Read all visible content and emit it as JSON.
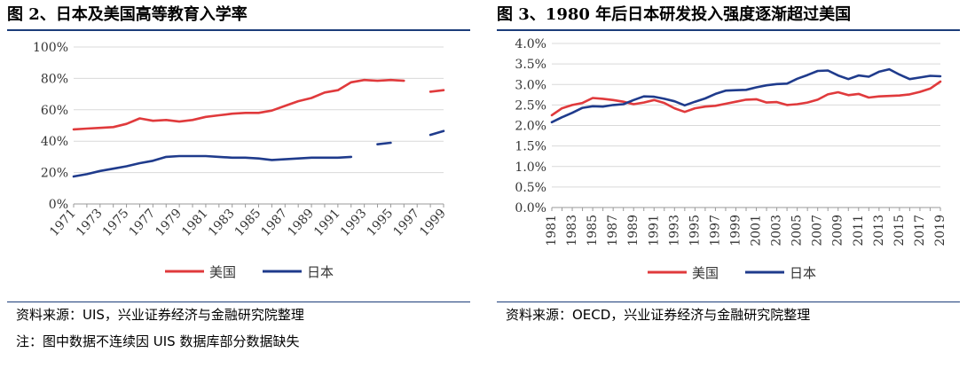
{
  "left": {
    "title": "图 2、日本及美国高等教育入学率",
    "source": "资料来源：UIS，兴业证券经济与金融研究院整理",
    "note": "注：图中数据不连续因 UIS 数据库部分数据缺失"
  },
  "right": {
    "title": "图 3、1980 年后日本研发投入强度逐渐超过美国",
    "source": "资料来源：OECD，兴业证券经济与金融研究院整理"
  },
  "chart_data": [
    {
      "type": "line",
      "title": "图 2、日本及美国高等教育入学率",
      "x": [
        1971,
        1972,
        1973,
        1974,
        1975,
        1976,
        1977,
        1978,
        1979,
        1980,
        1981,
        1982,
        1983,
        1984,
        1985,
        1986,
        1987,
        1988,
        1989,
        1990,
        1991,
        1992,
        1993,
        1994,
        1995,
        1996,
        1997,
        1998,
        1999
      ],
      "x_ticks": [
        "1971",
        "1973",
        "1975",
        "1977",
        "1979",
        "1981",
        "1983",
        "1985",
        "1987",
        "1989",
        "1991",
        "1993",
        "1995",
        "1997",
        "1999"
      ],
      "ylim": [
        0,
        100
      ],
      "y_ticks": [
        "0%",
        "20%",
        "40%",
        "60%",
        "80%",
        "100%"
      ],
      "grid": true,
      "legend": "bottom-center",
      "series": [
        {
          "name": "美国",
          "color": "#e03a3c",
          "values": [
            47.5,
            48,
            48.5,
            49,
            51,
            54.5,
            53,
            53.5,
            52.5,
            53.5,
            55.5,
            56.5,
            57.5,
            58,
            58,
            59.5,
            62.5,
            65.5,
            67.5,
            71,
            72.5,
            77.5,
            79,
            78.5,
            79,
            78.5,
            null,
            71.5,
            72.5
          ]
        },
        {
          "name": "日本",
          "color": "#1f3b8c",
          "values": [
            17.5,
            19,
            21,
            22.5,
            24,
            26,
            27.5,
            30,
            30.5,
            30.5,
            30.5,
            30,
            29.5,
            29.5,
            29,
            28,
            28.5,
            29,
            29.5,
            29.5,
            29.5,
            30,
            null,
            38,
            39,
            null,
            null,
            44,
            46.5
          ]
        }
      ]
    },
    {
      "type": "line",
      "title": "图 3、1980 年后日本研发投入强度逐渐超过美国",
      "x": [
        1981,
        1982,
        1983,
        1984,
        1985,
        1986,
        1987,
        1988,
        1989,
        1990,
        1991,
        1992,
        1993,
        1994,
        1995,
        1996,
        1997,
        1998,
        1999,
        2000,
        2001,
        2002,
        2003,
        2004,
        2005,
        2006,
        2007,
        2008,
        2009,
        2010,
        2011,
        2012,
        2013,
        2014,
        2015,
        2016,
        2017,
        2018,
        2019
      ],
      "x_ticks": [
        "1981",
        "1983",
        "1985",
        "1987",
        "1989",
        "1991",
        "1993",
        "1995",
        "1997",
        "1999",
        "2001",
        "2003",
        "2005",
        "2007",
        "2009",
        "2011",
        "2013",
        "2015",
        "2017",
        "2019"
      ],
      "ylim": [
        0,
        4
      ],
      "y_ticks": [
        "0.0%",
        "0.5%",
        "1.0%",
        "1.5%",
        "2.0%",
        "2.5%",
        "3.0%",
        "3.5%",
        "4.0%"
      ],
      "grid": true,
      "legend": "bottom-center",
      "series": [
        {
          "name": "美国",
          "color": "#e03a3c",
          "values": [
            2.25,
            2.42,
            2.5,
            2.55,
            2.67,
            2.65,
            2.62,
            2.58,
            2.52,
            2.56,
            2.62,
            2.55,
            2.42,
            2.33,
            2.42,
            2.46,
            2.48,
            2.53,
            2.58,
            2.63,
            2.64,
            2.56,
            2.57,
            2.5,
            2.52,
            2.56,
            2.63,
            2.76,
            2.81,
            2.74,
            2.77,
            2.68,
            2.71,
            2.72,
            2.73,
            2.76,
            2.82,
            2.9,
            3.07
          ]
        },
        {
          "name": "日本",
          "color": "#1f3b8c",
          "values": [
            2.08,
            2.2,
            2.31,
            2.43,
            2.47,
            2.46,
            2.5,
            2.52,
            2.62,
            2.71,
            2.7,
            2.65,
            2.59,
            2.49,
            2.58,
            2.66,
            2.77,
            2.85,
            2.86,
            2.87,
            2.93,
            2.98,
            3.01,
            3.02,
            3.14,
            3.23,
            3.33,
            3.34,
            3.22,
            3.13,
            3.22,
            3.19,
            3.31,
            3.37,
            3.24,
            3.13,
            3.17,
            3.21,
            3.2
          ]
        }
      ]
    }
  ]
}
